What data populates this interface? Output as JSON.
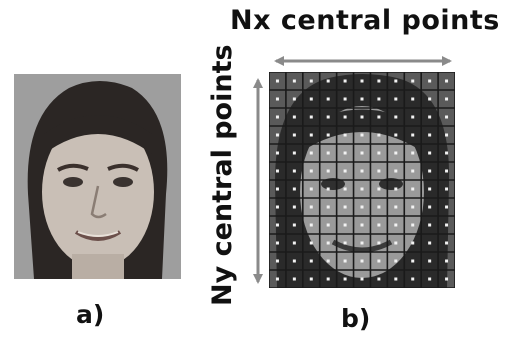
{
  "labels": {
    "panel_a": "a)",
    "panel_b": "b)",
    "nx": "Nx central points",
    "ny": "Ny central points"
  },
  "grid": {
    "columns": 11,
    "rows": 12
  },
  "colors": {
    "text": "#111111",
    "arrow": "#8a8a8a",
    "grid_line": "#1a1a1a",
    "grid_point": "#f2f2f2",
    "photo_bg": "#9b9b9b"
  }
}
